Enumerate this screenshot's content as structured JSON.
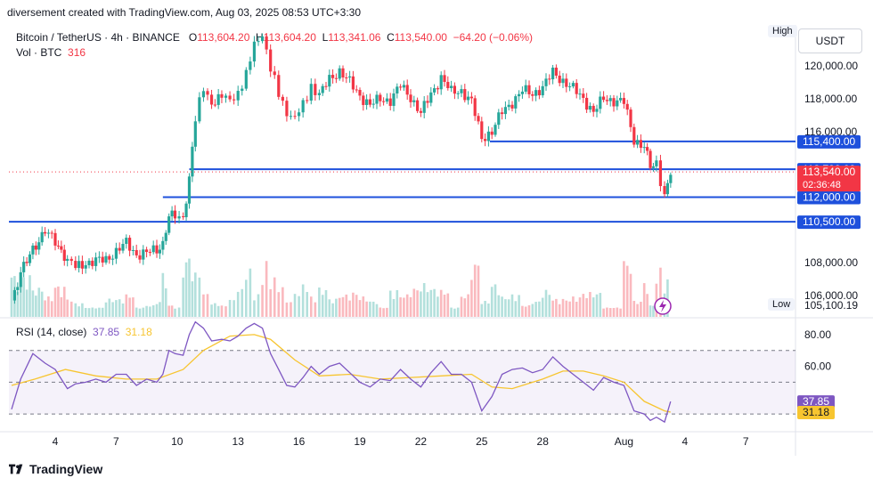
{
  "caption": "diversement created with TradingView.com, Aug 03, 2025 08:53 UTC+3:30",
  "symbol": {
    "name": "Bitcoin / TetherUS · 4h · BINANCE",
    "o_label": "O",
    "o": "113,604.20",
    "h_label": "H",
    "h": "113,604.20",
    "l_label": "L",
    "l": "113,341.06",
    "c_label": "C",
    "c": "113,540.00",
    "change": "−64.20 (−0.06%)"
  },
  "volume": {
    "label": "Vol · BTC",
    "value": "316"
  },
  "currency": "USDT",
  "high_badge": "High",
  "low_badge": "Low",
  "low_value": "105,100.19",
  "rsi": {
    "label": "RSI (14, close)",
    "value": "37.85",
    "ma_value": "31.18"
  },
  "brand": "TradingView",
  "colors": {
    "up": "#26a69a",
    "down": "#f23645",
    "level": "#1e50dc",
    "rsi": "#7e57c2",
    "rsi_ma": "#f7c530"
  },
  "chart_data": {
    "type": "candlestick",
    "price_axis": {
      "ticks": [
        "120,000.00",
        "118,000.00",
        "116,000.00",
        "108,000.00",
        "106,000.00"
      ],
      "tick_values": [
        120000,
        118000,
        116000,
        108000,
        106000
      ],
      "ylim": [
        104700,
        122500
      ]
    },
    "level_lines": [
      {
        "label": "115,400.00",
        "value": 115400
      },
      {
        "label": "113,700.00",
        "value": 113700
      },
      {
        "label": "112,000.00",
        "value": 112000
      },
      {
        "label": "110,500.00",
        "value": 110500
      }
    ],
    "current_price": {
      "label": "113,540.00",
      "value": 113540,
      "countdown": "02:36:48"
    },
    "x_ticks": [
      "4",
      "7",
      "10",
      "13",
      "16",
      "19",
      "22",
      "25",
      "28",
      "Aug",
      "4",
      "7"
    ],
    "x_tick_days": [
      4,
      7,
      10,
      13,
      16,
      19,
      22,
      25,
      28,
      32,
      35,
      38
    ],
    "candle_days_range": [
      1.85,
      34.3
    ],
    "close_path": [
      [
        1.85,
        105700
      ],
      [
        2.3,
        107300
      ],
      [
        2.9,
        108900
      ],
      [
        3.5,
        109900
      ],
      [
        4.0,
        109300
      ],
      [
        4.6,
        108200
      ],
      [
        5.0,
        107700
      ],
      [
        5.5,
        108000
      ],
      [
        6.0,
        108100
      ],
      [
        6.5,
        108200
      ],
      [
        7.0,
        108700
      ],
      [
        7.5,
        109200
      ],
      [
        8.0,
        108500
      ],
      [
        8.5,
        108600
      ],
      [
        9.0,
        108800
      ],
      [
        9.3,
        109200
      ],
      [
        9.6,
        110900
      ],
      [
        9.9,
        110700
      ],
      [
        10.3,
        110800
      ],
      [
        10.6,
        113200
      ],
      [
        10.9,
        116800
      ],
      [
        11.3,
        118600
      ],
      [
        11.7,
        117800
      ],
      [
        12.2,
        118100
      ],
      [
        12.6,
        117900
      ],
      [
        13.0,
        118400
      ],
      [
        13.4,
        119400
      ],
      [
        13.8,
        121300
      ],
      [
        14.2,
        122000
      ],
      [
        14.6,
        119800
      ],
      [
        15.0,
        118300
      ],
      [
        15.4,
        117200
      ],
      [
        15.8,
        116800
      ],
      [
        16.2,
        117600
      ],
      [
        16.6,
        118800
      ],
      [
        17.0,
        118200
      ],
      [
        17.5,
        119200
      ],
      [
        18.0,
        119700
      ],
      [
        18.5,
        119000
      ],
      [
        19.0,
        118200
      ],
      [
        19.5,
        117600
      ],
      [
        20.0,
        118000
      ],
      [
        20.5,
        117900
      ],
      [
        21.0,
        118800
      ],
      [
        21.5,
        118100
      ],
      [
        22.0,
        117100
      ],
      [
        22.5,
        118300
      ],
      [
        23.0,
        119300
      ],
      [
        23.5,
        118400
      ],
      [
        24.0,
        118500
      ],
      [
        24.5,
        117800
      ],
      [
        25.0,
        115600
      ],
      [
        25.5,
        116000
      ],
      [
        26.0,
        117200
      ],
      [
        26.5,
        117800
      ],
      [
        27.0,
        118500
      ],
      [
        27.5,
        118300
      ],
      [
        28.0,
        118700
      ],
      [
        28.5,
        119600
      ],
      [
        29.0,
        119100
      ],
      [
        29.5,
        118600
      ],
      [
        30.0,
        118000
      ],
      [
        30.5,
        117200
      ],
      [
        31.0,
        118000
      ],
      [
        31.5,
        117900
      ],
      [
        32.0,
        117800
      ],
      [
        32.5,
        115500
      ],
      [
        33.0,
        115100
      ],
      [
        33.3,
        113800
      ],
      [
        33.6,
        114000
      ],
      [
        34.0,
        112100
      ],
      [
        34.3,
        113540
      ]
    ],
    "rsi_axis": {
      "ticks": [
        "80.00",
        "60.00"
      ],
      "tick_values": [
        80,
        60
      ],
      "ylim": [
        20,
        90
      ],
      "bands": [
        70,
        50,
        30
      ]
    },
    "rsi_path": [
      [
        1.85,
        33
      ],
      [
        2.3,
        52
      ],
      [
        2.9,
        68
      ],
      [
        3.5,
        62
      ],
      [
        4.0,
        58
      ],
      [
        4.6,
        46
      ],
      [
        5.0,
        49
      ],
      [
        5.5,
        50
      ],
      [
        6.0,
        52
      ],
      [
        6.5,
        50
      ],
      [
        7.0,
        55
      ],
      [
        7.5,
        55
      ],
      [
        8.0,
        48
      ],
      [
        8.5,
        52
      ],
      [
        9.0,
        50
      ],
      [
        9.3,
        55
      ],
      [
        9.6,
        70
      ],
      [
        9.9,
        68
      ],
      [
        10.3,
        67
      ],
      [
        10.6,
        80
      ],
      [
        10.9,
        88
      ],
      [
        11.3,
        84
      ],
      [
        11.7,
        76
      ],
      [
        12.2,
        77
      ],
      [
        12.6,
        76
      ],
      [
        13.0,
        79
      ],
      [
        13.4,
        84
      ],
      [
        13.8,
        87
      ],
      [
        14.2,
        84
      ],
      [
        14.6,
        68
      ],
      [
        15.0,
        58
      ],
      [
        15.4,
        48
      ],
      [
        15.8,
        47
      ],
      [
        16.2,
        53
      ],
      [
        16.6,
        60
      ],
      [
        17.0,
        55
      ],
      [
        17.5,
        60
      ],
      [
        18.0,
        62
      ],
      [
        18.5,
        56
      ],
      [
        19.0,
        50
      ],
      [
        19.5,
        47
      ],
      [
        20.0,
        52
      ],
      [
        20.5,
        51
      ],
      [
        21.0,
        58
      ],
      [
        21.5,
        52
      ],
      [
        22.0,
        47
      ],
      [
        22.5,
        56
      ],
      [
        23.0,
        63
      ],
      [
        23.5,
        55
      ],
      [
        24.0,
        55
      ],
      [
        24.5,
        50
      ],
      [
        25.0,
        32
      ],
      [
        25.5,
        41
      ],
      [
        26.0,
        55
      ],
      [
        26.5,
        58
      ],
      [
        27.0,
        59
      ],
      [
        27.5,
        56
      ],
      [
        28.0,
        58
      ],
      [
        28.5,
        66
      ],
      [
        29.0,
        60
      ],
      [
        29.5,
        55
      ],
      [
        30.0,
        50
      ],
      [
        30.5,
        45
      ],
      [
        31.0,
        53
      ],
      [
        31.5,
        50
      ],
      [
        32.0,
        48
      ],
      [
        32.5,
        32
      ],
      [
        33.0,
        30
      ],
      [
        33.3,
        26
      ],
      [
        33.6,
        28
      ],
      [
        34.0,
        25
      ],
      [
        34.3,
        37.85
      ]
    ],
    "rsi_ma_path": [
      [
        1.85,
        48
      ],
      [
        3.0,
        52
      ],
      [
        4.5,
        58
      ],
      [
        6.0,
        54
      ],
      [
        7.5,
        52
      ],
      [
        9.0,
        52
      ],
      [
        10.3,
        58
      ],
      [
        11.3,
        70
      ],
      [
        12.6,
        79
      ],
      [
        13.8,
        80
      ],
      [
        14.6,
        77
      ],
      [
        15.8,
        64
      ],
      [
        17.0,
        54
      ],
      [
        18.5,
        55
      ],
      [
        20.0,
        52
      ],
      [
        21.5,
        53
      ],
      [
        23.0,
        54
      ],
      [
        24.5,
        55
      ],
      [
        25.5,
        47
      ],
      [
        26.5,
        46
      ],
      [
        28.0,
        52
      ],
      [
        29.0,
        57
      ],
      [
        30.0,
        57
      ],
      [
        31.0,
        54
      ],
      [
        32.0,
        50
      ],
      [
        33.0,
        38
      ],
      [
        34.0,
        32
      ],
      [
        34.3,
        31.18
      ]
    ]
  }
}
